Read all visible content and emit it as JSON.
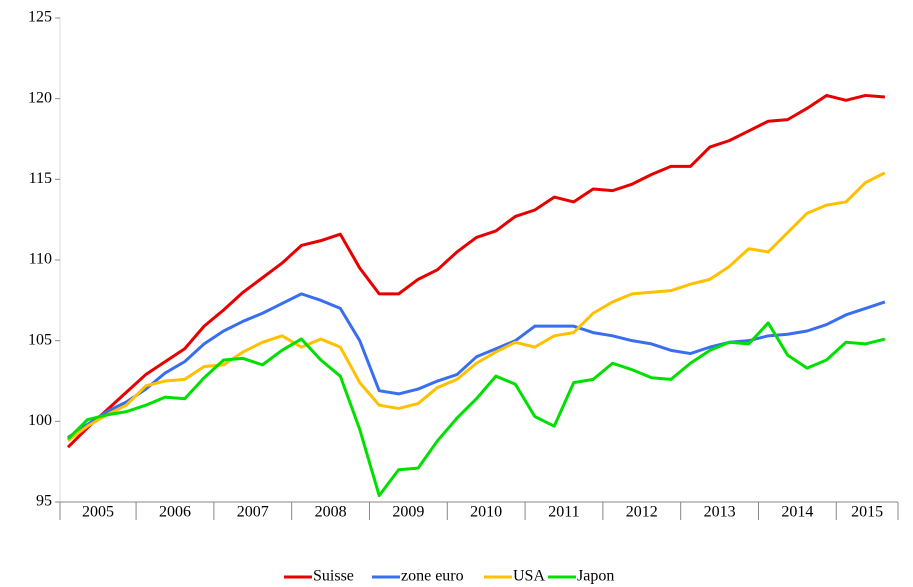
{
  "chart_data": {
    "type": "line",
    "categories": [
      null,
      "2005",
      null,
      null,
      null,
      "2006",
      null,
      null,
      null,
      "2007",
      null,
      null,
      null,
      "2008",
      null,
      null,
      null,
      "2009",
      null,
      null,
      null,
      "2010",
      null,
      null,
      null,
      "2011",
      null,
      null,
      null,
      "2012",
      null,
      null,
      null,
      "2013",
      null,
      null,
      null,
      "2014",
      null,
      null,
      null,
      "2015",
      null
    ],
    "series": [
      {
        "name": "Suisse",
        "color": "#e60000",
        "values": [
          98.4,
          99.6,
          100.7,
          101.8,
          102.9,
          103.7,
          104.5,
          105.9,
          106.9,
          108.0,
          108.9,
          109.8,
          110.9,
          111.2,
          111.6,
          109.5,
          107.9,
          107.9,
          108.8,
          109.4,
          110.5,
          111.4,
          111.8,
          112.7,
          113.1,
          113.9,
          113.6,
          114.4,
          114.3,
          114.7,
          115.3,
          115.8,
          115.8,
          117.0,
          117.4,
          118.0,
          118.6,
          118.7,
          119.4,
          120.2,
          119.9,
          120.2,
          120.1
        ]
      },
      {
        "name": "zone euro",
        "color": "#3a6ef0",
        "values": [
          99.0,
          99.8,
          100.6,
          101.2,
          102.0,
          103.0,
          103.7,
          104.8,
          105.6,
          106.2,
          106.7,
          107.3,
          107.9,
          107.5,
          107.0,
          105.0,
          101.9,
          101.7,
          102.0,
          102.5,
          102.9,
          104.0,
          104.5,
          105.0,
          105.9,
          105.9,
          105.9,
          105.5,
          105.3,
          105.0,
          104.8,
          104.4,
          104.2,
          104.6,
          104.9,
          105.0,
          105.3,
          105.4,
          105.6,
          106.0,
          106.6,
          107.0,
          107.4
        ]
      },
      {
        "name": "USA",
        "color": "#ffc000",
        "values": [
          98.8,
          99.7,
          100.4,
          101.0,
          102.2,
          102.5,
          102.6,
          103.4,
          103.5,
          104.3,
          104.9,
          105.3,
          104.6,
          105.1,
          104.6,
          102.4,
          101.0,
          100.8,
          101.1,
          102.1,
          102.6,
          103.6,
          104.3,
          104.9,
          104.6,
          105.3,
          105.5,
          106.7,
          107.4,
          107.9,
          108.0,
          108.1,
          108.5,
          108.8,
          109.6,
          110.7,
          110.5,
          111.7,
          112.9,
          113.4,
          113.6,
          114.8,
          115.4
        ]
      },
      {
        "name": "Japon",
        "color": "#00e000",
        "values": [
          98.9,
          100.1,
          100.4,
          100.6,
          101.0,
          101.5,
          101.4,
          102.7,
          103.8,
          103.9,
          103.5,
          104.4,
          105.1,
          103.8,
          102.8,
          99.5,
          95.4,
          97.0,
          97.1,
          98.8,
          100.2,
          101.4,
          102.8,
          102.3,
          100.3,
          99.7,
          102.4,
          102.6,
          103.6,
          103.2,
          102.7,
          102.6,
          103.6,
          104.4,
          104.9,
          104.8,
          106.1,
          104.1,
          103.3,
          103.8,
          104.9,
          104.8,
          105.1
        ]
      }
    ],
    "ylim": [
      95,
      125
    ],
    "yticks": [
      95,
      100,
      105,
      110,
      115,
      120,
      125
    ],
    "legend": "bottom"
  }
}
